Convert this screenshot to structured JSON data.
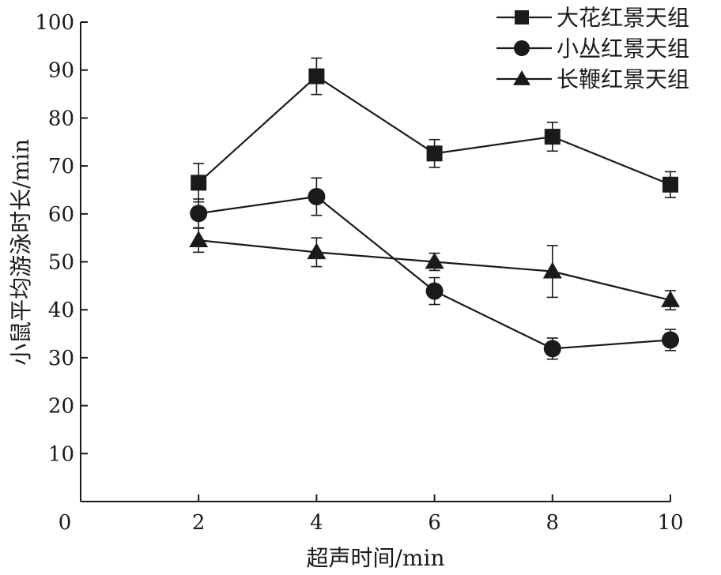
{
  "chart_data": {
    "type": "line",
    "xlabel": "超声时间/min",
    "ylabel": "小鼠平均游泳时长/min",
    "xlim": [
      0,
      10
    ],
    "ylim": [
      0,
      100
    ],
    "x_ticks": [
      0,
      2,
      4,
      6,
      8,
      10
    ],
    "y_ticks": [
      10,
      20,
      30,
      40,
      50,
      60,
      70,
      80,
      90,
      100
    ],
    "grid": false,
    "legend_position": "top-right",
    "x": [
      2,
      4,
      6,
      8,
      10
    ],
    "series": [
      {
        "name": "大花红景天组",
        "marker": "square",
        "values": [
          66.5,
          88.7,
          72.6,
          76.1,
          66.1
        ],
        "errors": [
          4.0,
          3.8,
          2.9,
          3.0,
          2.7
        ]
      },
      {
        "name": "小丛红景天组",
        "marker": "circle",
        "values": [
          60.1,
          63.6,
          43.9,
          31.9,
          33.7
        ],
        "errors": [
          3.0,
          3.9,
          2.8,
          2.2,
          2.2
        ]
      },
      {
        "name": "长鞭红景天组",
        "marker": "triangle",
        "values": [
          54.5,
          52.0,
          50.0,
          48.0,
          42.0
        ],
        "errors": [
          2.5,
          3.0,
          1.8,
          5.4,
          2.0
        ]
      }
    ]
  }
}
